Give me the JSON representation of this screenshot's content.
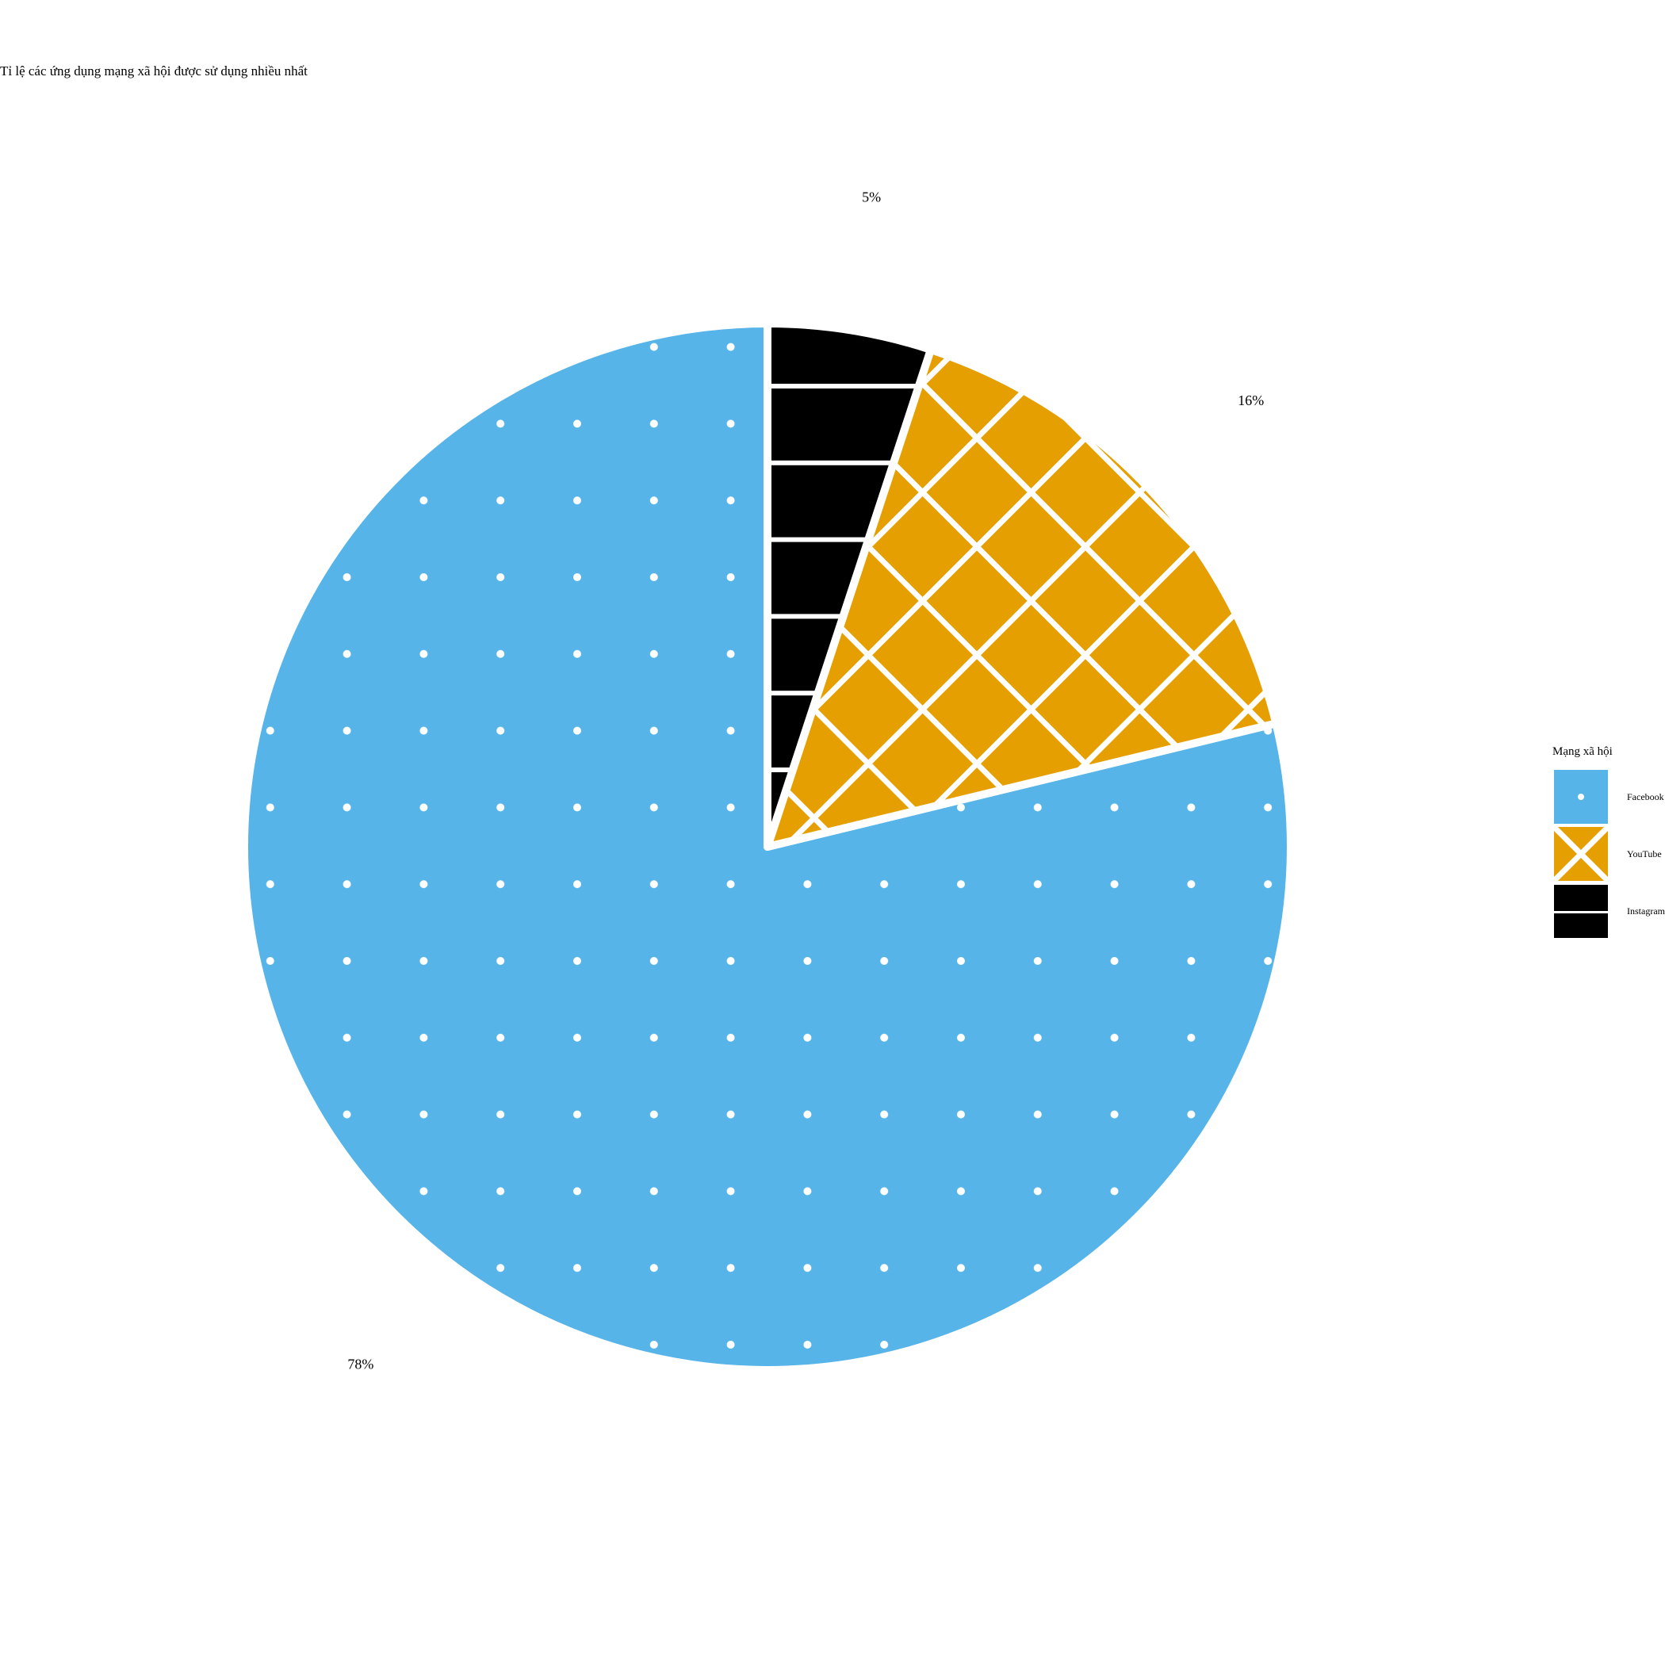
{
  "chart_data": {
    "type": "pie",
    "title": "Tỉ lệ các ứng dụng mạng xã hội được sử dụng nhiều nhất",
    "legend_title": "Mạng xã hội",
    "legend_position": "right",
    "categories": [
      "Facebook",
      "YouTube",
      "Instagram"
    ],
    "values": [
      78,
      16,
      5
    ],
    "labels": [
      "78%",
      "16%",
      "5%"
    ],
    "colors": [
      "#56B4E9",
      "#E69F00",
      "#000000"
    ],
    "patterns": [
      "dots",
      "crosshatch",
      "horizontal-stripes"
    ]
  }
}
